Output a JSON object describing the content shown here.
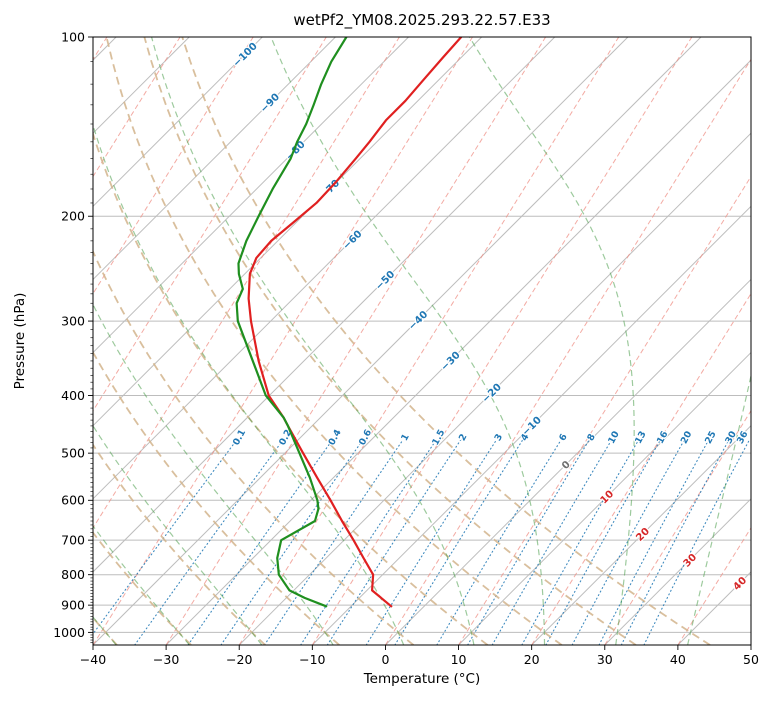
{
  "chart_data": {
    "type": "skewt_logp",
    "title": "wetPf2_YM08.2025.293.22.57.E33",
    "xlabel": "Temperature (°C)",
    "ylabel": "Pressure (hPa)",
    "x_ticks": [
      -40,
      -30,
      -20,
      -10,
      0,
      10,
      20,
      30,
      40,
      50
    ],
    "y_ticks": [
      100,
      200,
      300,
      400,
      500,
      600,
      700,
      800,
      900,
      1000
    ],
    "t_min": -40,
    "t_max": 50,
    "p_top": 100,
    "p_bottom": 1050,
    "grid_on": true,
    "isotherms": {
      "min": -130,
      "max": 50,
      "step": 10,
      "color": "#bdbdbd"
    },
    "isotherm_labels": {
      "items": [
        {
          "t": -100,
          "p": 107
        },
        {
          "t": -90,
          "p": 129
        },
        {
          "t": -80,
          "p": 155
        },
        {
          "t": -70,
          "p": 180
        },
        {
          "t": -60,
          "p": 219
        },
        {
          "t": -50,
          "p": 256
        },
        {
          "t": -40,
          "p": 299
        },
        {
          "t": -30,
          "p": 350
        },
        {
          "t": -20,
          "p": 396
        },
        {
          "t": -10,
          "p": 450
        },
        {
          "t": 0,
          "p": 523
        },
        {
          "t": 10,
          "p": 592
        },
        {
          "t": 20,
          "p": 684
        },
        {
          "t": 30,
          "p": 756
        },
        {
          "t": 40,
          "p": 827
        }
      ],
      "negative_color": "#1f77b4",
      "zero_color": "#6f6f6f",
      "positive_color": "#d62728"
    },
    "red_dashed_guides": {
      "min": -120,
      "max": 50,
      "step": 10,
      "slope_c_per_decade": -30.6,
      "color": "#ef9086"
    },
    "dry_adiabats": {
      "thetas": [
        -60,
        -50,
        -40,
        -30,
        -20,
        -10,
        0,
        10,
        20,
        30,
        40
      ],
      "color": "#d2b48c"
    },
    "moist_adiabats": {
      "start_temps": [
        -60,
        -50,
        -40,
        -30,
        -20,
        -10,
        0,
        10,
        20,
        30,
        40
      ],
      "color": "#4c9e4c"
    },
    "mixing_ratio_lines": {
      "values": [
        0.1,
        0.2,
        0.4,
        0.6,
        1,
        1.5,
        2,
        3,
        4,
        6,
        8,
        10,
        13,
        16,
        20,
        25,
        30,
        36
      ],
      "p_line_top": 475,
      "label_p": 470,
      "color": "#1f77b4"
    },
    "series": [
      {
        "name": "temperature",
        "color": "#e02020",
        "points": [
          [
            904,
            -4.5
          ],
          [
            850,
            -9.3
          ],
          [
            800,
            -11.3
          ],
          [
            750,
            -14.9
          ],
          [
            700,
            -18.7
          ],
          [
            650,
            -22.9
          ],
          [
            600,
            -27.3
          ],
          [
            550,
            -32.2
          ],
          [
            500,
            -37.5
          ],
          [
            450,
            -43.3
          ],
          [
            436,
            -45.0
          ],
          [
            400,
            -50.1
          ],
          [
            350,
            -56.2
          ],
          [
            300,
            -62.7
          ],
          [
            275,
            -66.1
          ],
          [
            250,
            -69.3
          ],
          [
            235,
            -70.6
          ],
          [
            220,
            -70.9
          ],
          [
            205,
            -70.4
          ],
          [
            190,
            -69.9
          ],
          [
            175,
            -70.1
          ],
          [
            160,
            -70.6
          ],
          [
            150,
            -71.0
          ],
          [
            138,
            -71.7
          ],
          [
            128,
            -71.7
          ],
          [
            118,
            -72.1
          ],
          [
            108,
            -72.5
          ],
          [
            100,
            -72.8
          ]
        ]
      },
      {
        "name": "dewpoint",
        "color": "#1f8f1f",
        "points": [
          [
            904,
            -13.4
          ],
          [
            875,
            -17.5
          ],
          [
            850,
            -20.6
          ],
          [
            800,
            -24.2
          ],
          [
            750,
            -26.7
          ],
          [
            700,
            -28.6
          ],
          [
            650,
            -26.6
          ],
          [
            620,
            -27.8
          ],
          [
            600,
            -29.1
          ],
          [
            550,
            -33.2
          ],
          [
            500,
            -38.0
          ],
          [
            450,
            -43.3
          ],
          [
            436,
            -45.0
          ],
          [
            400,
            -50.5
          ],
          [
            350,
            -57.0
          ],
          [
            300,
            -64.5
          ],
          [
            280,
            -67.1
          ],
          [
            265,
            -68.2
          ],
          [
            250,
            -70.8
          ],
          [
            240,
            -72.3
          ],
          [
            220,
            -74.3
          ],
          [
            200,
            -76.0
          ],
          [
            180,
            -77.8
          ],
          [
            160,
            -79.5
          ],
          [
            150,
            -80.9
          ],
          [
            140,
            -82.1
          ],
          [
            130,
            -83.7
          ],
          [
            120,
            -85.5
          ],
          [
            110,
            -87.2
          ],
          [
            100,
            -88.5
          ]
        ]
      }
    ]
  }
}
